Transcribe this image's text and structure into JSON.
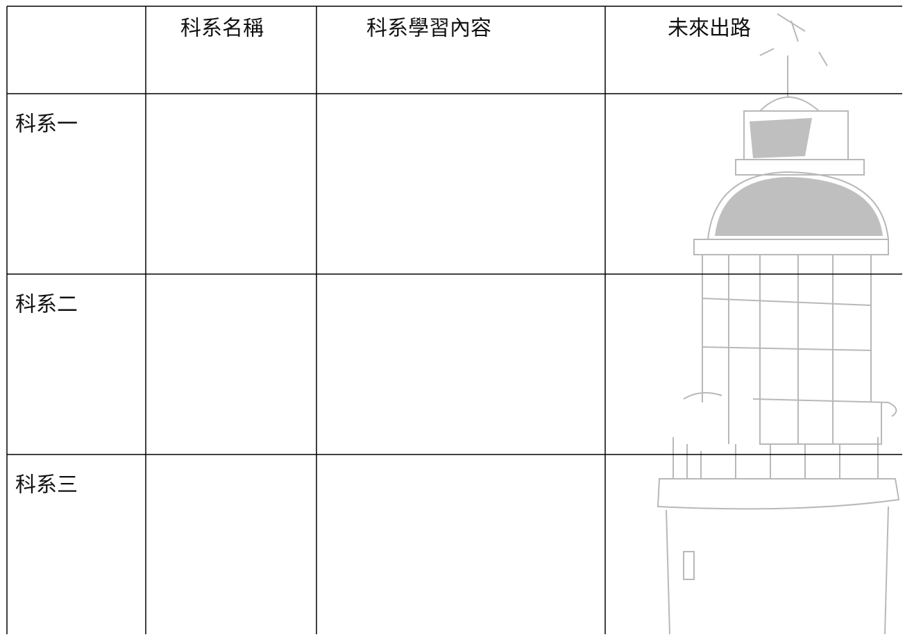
{
  "table": {
    "columns": [
      "科系名稱",
      "科系學習內容",
      "未來出路"
    ],
    "rows": [
      "科系一",
      "科系二",
      "科系三"
    ]
  }
}
